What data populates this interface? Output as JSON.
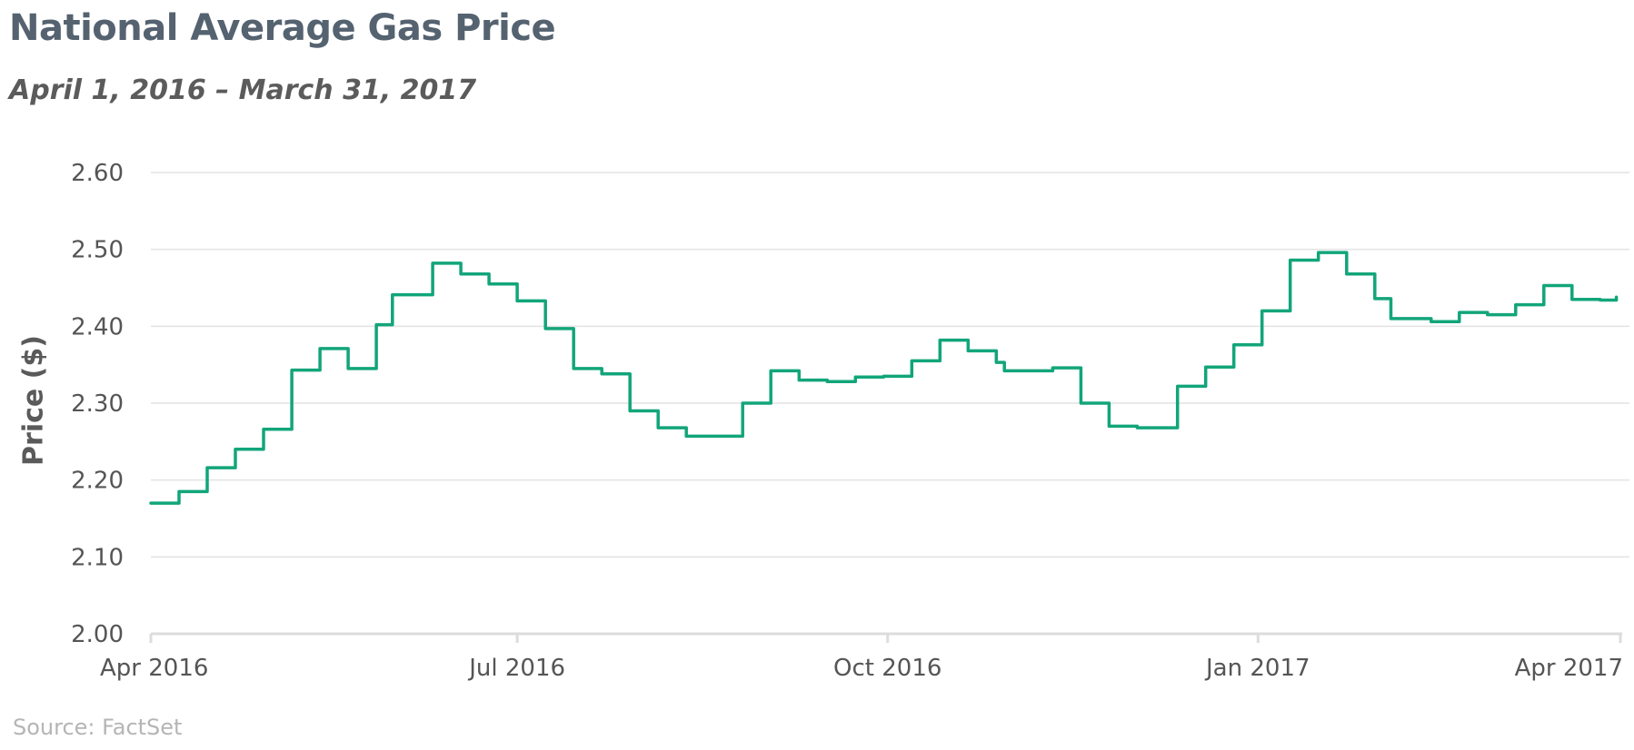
{
  "chart_data": {
    "type": "line",
    "title": "National Average Gas Price",
    "subtitle": "April 1, 2016 – March 31, 2017",
    "ylabel": "Price ($)",
    "xlabel": "",
    "source": "Source: FactSet",
    "ylim": [
      2.0,
      2.6
    ],
    "yticks": [
      "2.00",
      "2.10",
      "2.20",
      "2.30",
      "2.40",
      "2.50",
      "2.60"
    ],
    "xlim": [
      "2016-04-01",
      "2017-04-01"
    ],
    "xticks": [
      {
        "date": "2016-04-01",
        "label": "Apr 2016"
      },
      {
        "date": "2016-07-01",
        "label": "Jul 2016"
      },
      {
        "date": "2016-10-01",
        "label": "Oct 2016"
      },
      {
        "date": "2017-01-01",
        "label": "Jan 2017"
      },
      {
        "date": "2017-04-01",
        "label": "Apr 2017"
      }
    ],
    "grid": true,
    "line_color": "#12a57a",
    "series": [
      {
        "step": true,
        "points": [
          [
            "2016-04-01",
            2.17
          ],
          [
            "2016-04-08",
            2.185
          ],
          [
            "2016-04-15",
            2.216
          ],
          [
            "2016-04-22",
            2.24
          ],
          [
            "2016-04-29",
            2.266
          ],
          [
            "2016-05-06",
            2.343
          ],
          [
            "2016-05-13",
            2.371
          ],
          [
            "2016-05-20",
            2.345
          ],
          [
            "2016-05-27",
            2.402
          ],
          [
            "2016-05-31",
            2.441
          ],
          [
            "2016-06-10",
            2.482
          ],
          [
            "2016-06-17",
            2.468
          ],
          [
            "2016-06-24",
            2.455
          ],
          [
            "2016-07-01",
            2.433
          ],
          [
            "2016-07-08",
            2.397
          ],
          [
            "2016-07-15",
            2.345
          ],
          [
            "2016-07-22",
            2.338
          ],
          [
            "2016-07-29",
            2.29
          ],
          [
            "2016-08-05",
            2.268
          ],
          [
            "2016-08-12",
            2.257
          ],
          [
            "2016-08-26",
            2.3
          ],
          [
            "2016-09-02",
            2.342
          ],
          [
            "2016-09-09",
            2.33
          ],
          [
            "2016-09-16",
            2.328
          ],
          [
            "2016-09-23",
            2.334
          ],
          [
            "2016-09-30",
            2.335
          ],
          [
            "2016-10-07",
            2.355
          ],
          [
            "2016-10-14",
            2.382
          ],
          [
            "2016-10-21",
            2.368
          ],
          [
            "2016-10-28",
            2.353
          ],
          [
            "2016-10-30",
            2.342
          ],
          [
            "2016-11-11",
            2.346
          ],
          [
            "2016-11-18",
            2.3
          ],
          [
            "2016-11-25",
            2.27
          ],
          [
            "2016-12-02",
            2.268
          ],
          [
            "2016-12-12",
            2.322
          ],
          [
            "2016-12-19",
            2.347
          ],
          [
            "2016-12-26",
            2.376
          ],
          [
            "2017-01-02",
            2.42
          ],
          [
            "2017-01-09",
            2.486
          ],
          [
            "2017-01-16",
            2.496
          ],
          [
            "2017-01-23",
            2.468
          ],
          [
            "2017-01-30",
            2.436
          ],
          [
            "2017-02-03",
            2.41
          ],
          [
            "2017-02-13",
            2.406
          ],
          [
            "2017-02-20",
            2.418
          ],
          [
            "2017-02-27",
            2.415
          ],
          [
            "2017-03-06",
            2.428
          ],
          [
            "2017-03-13",
            2.453
          ],
          [
            "2017-03-20",
            2.435
          ],
          [
            "2017-03-27",
            2.434
          ],
          [
            "2017-03-31",
            2.438
          ]
        ]
      }
    ]
  }
}
